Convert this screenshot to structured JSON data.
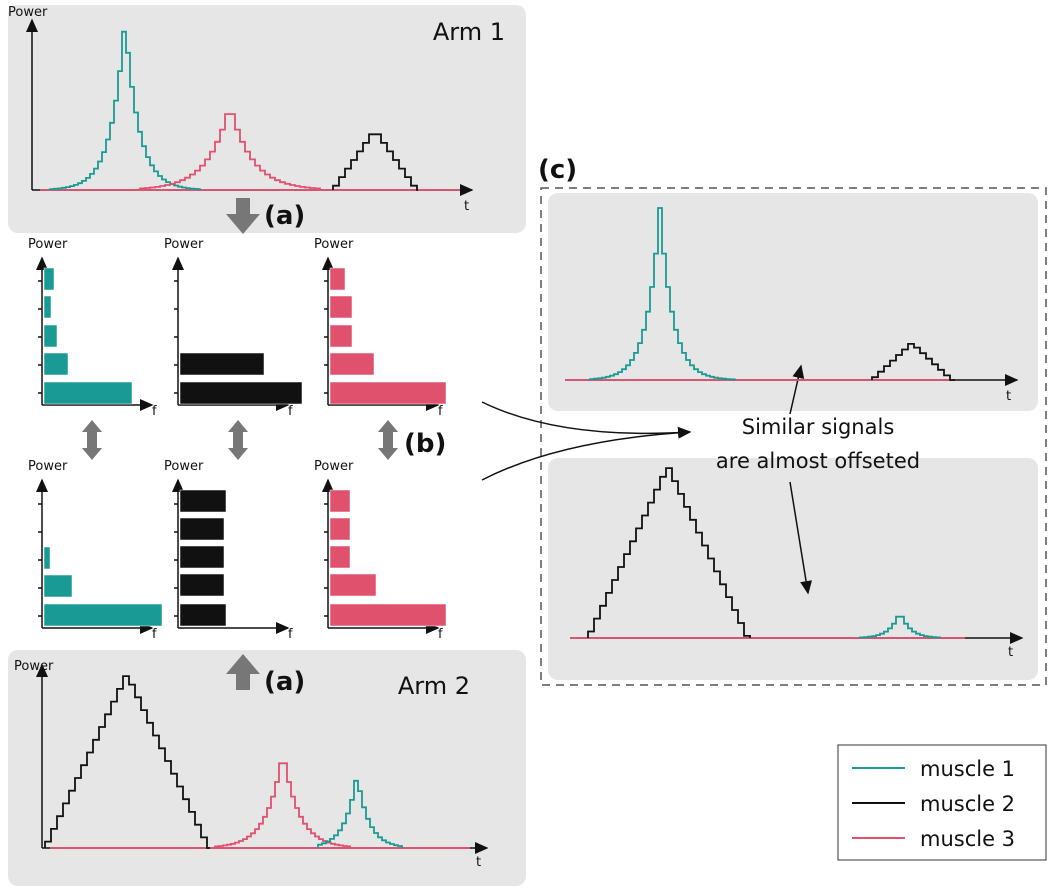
{
  "arm1": {
    "label": "Arm 1",
    "y_axis": "Power",
    "x_axis": "t"
  },
  "arm2": {
    "label": "Arm 2",
    "y_axis": "Power",
    "x_axis": "t"
  },
  "arrows": {
    "a_top": "(a)",
    "a_bottom": "(a)",
    "b": "(b)"
  },
  "spectra": {
    "top": [
      {
        "y_axis": "Power",
        "x_axis": "f"
      },
      {
        "y_axis": "Power",
        "x_axis": "f"
      },
      {
        "y_axis": "Power",
        "x_axis": "f"
      }
    ],
    "bottom": [
      {
        "y_axis": "Power",
        "x_axis": "f"
      },
      {
        "y_axis": "Power",
        "x_axis": "f"
      },
      {
        "y_axis": "Power",
        "x_axis": "f"
      }
    ]
  },
  "panel_c": {
    "label": "(c)",
    "top_x_axis": "t",
    "bottom_x_axis": "t",
    "annotation": [
      "Similar signals",
      "are almost offseted"
    ]
  },
  "legend": [
    {
      "name": "muscle 1",
      "color": "#1a9a94"
    },
    {
      "name": "muscle 2",
      "color": "#111111"
    },
    {
      "name": "muscle 3",
      "color": "#e0516e"
    }
  ]
}
